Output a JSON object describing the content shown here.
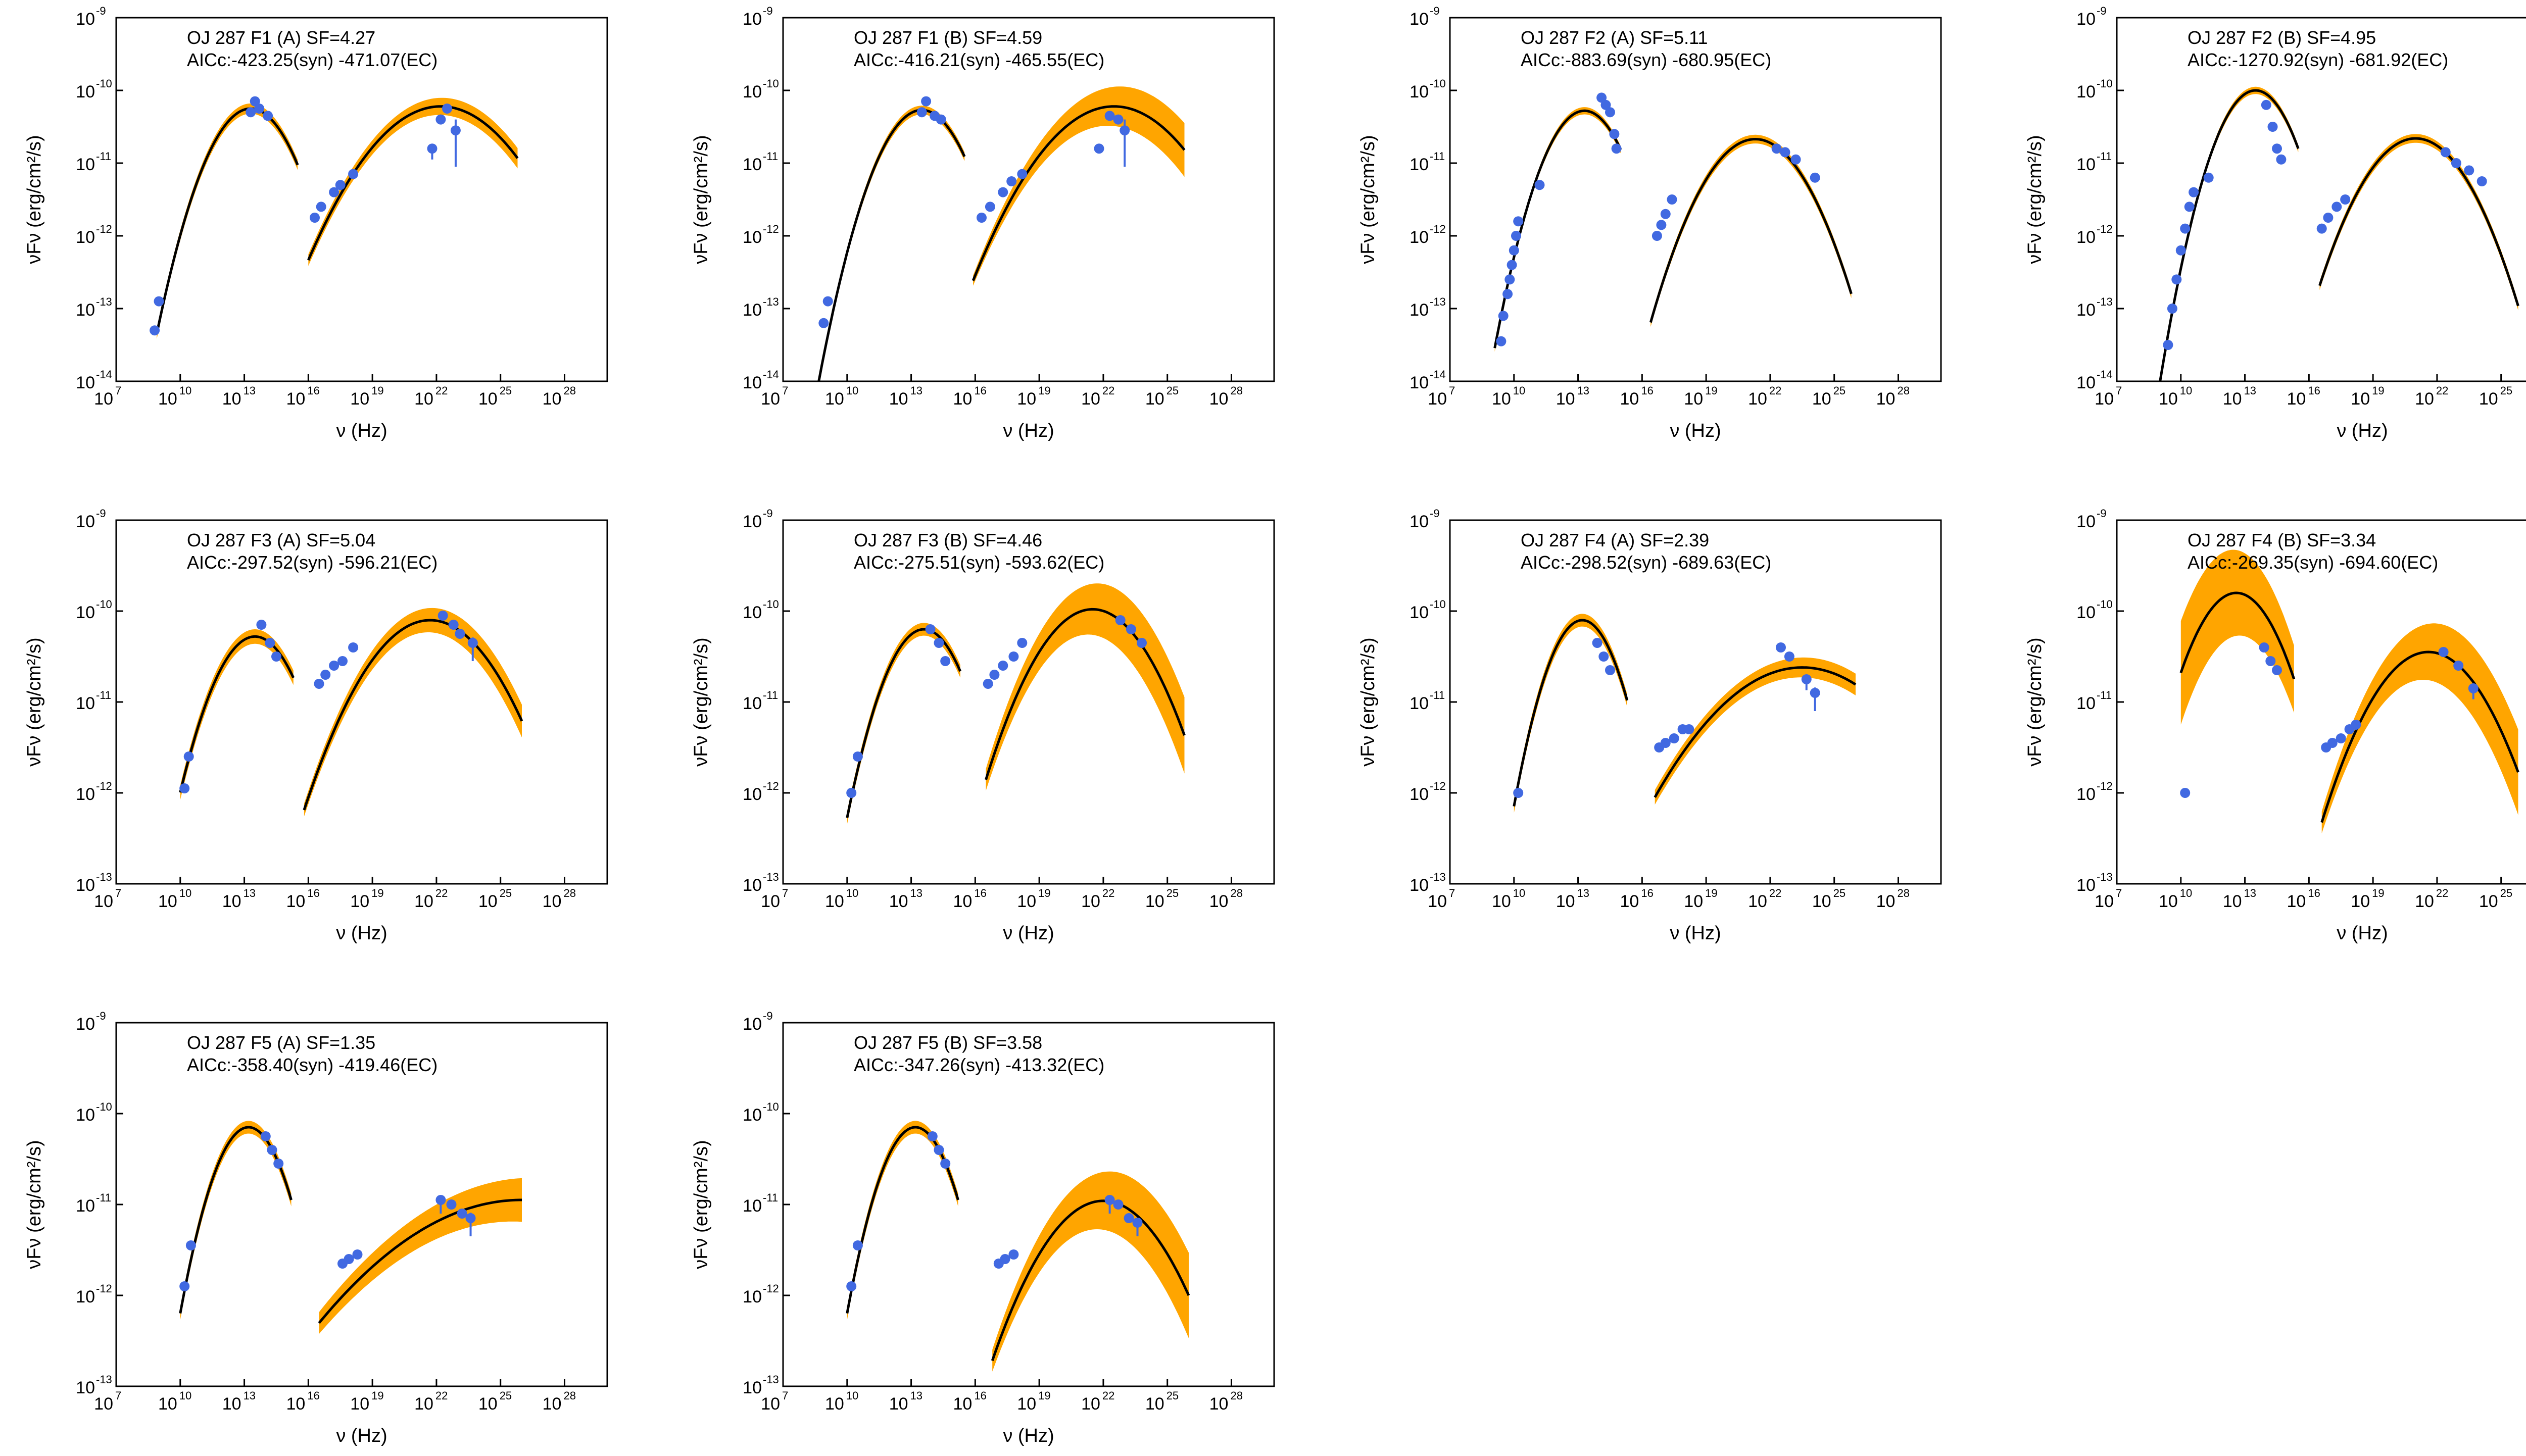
{
  "figure": {
    "colors": {
      "band": "#FFA500",
      "model": "#000000",
      "points": "#4169E1",
      "upper_limit": "#AFC4F0",
      "axes": "#000000"
    },
    "x_axis_label": "ν (Hz)",
    "y_axis_label": "νFν (erg/cm²/s)",
    "x_tick_base": "10",
    "x_tick_exponents": [
      "7",
      "10",
      "13",
      "16",
      "19",
      "22",
      "25",
      "28"
    ],
    "y_tick_base": "10"
  },
  "chart_data": [
    {
      "type": "scatter",
      "title": "OJ 287 F1 (A) SF=4.27",
      "subtitle": "AICc:-423.25(syn)  -471.07(EC)",
      "xlabel": "ν (Hz)",
      "ylabel": "νFν (erg/cm²/s)",
      "xlim": [
        7,
        30
      ],
      "ylim": [
        -14,
        -9
      ],
      "yticks": [
        "-14",
        "-13",
        "-12",
        "-11",
        "-10",
        "-9"
      ],
      "syn": {
        "A": -10.25,
        "peak": 13.3,
        "c": 0.16,
        "x0": 8.9,
        "x1": 15.5,
        "band": [
          [
            0.05,
            0.05
          ]
        ]
      },
      "ec": {
        "A": -10.22,
        "peak": 22.2,
        "c": 0.055,
        "x0": 16.0,
        "x1": 25.8,
        "band": [
          [
            0.06,
            0.12
          ]
        ]
      },
      "points": [
        [
          8.8,
          -13.3
        ],
        [
          9.0,
          -12.9
        ],
        [
          13.3,
          -10.3
        ],
        [
          13.5,
          -10.15
        ],
        [
          13.7,
          -10.25
        ],
        [
          14.1,
          -10.35
        ],
        [
          16.3,
          -11.75
        ],
        [
          16.6,
          -11.6
        ],
        [
          17.2,
          -11.4
        ],
        [
          17.5,
          -11.3
        ],
        [
          18.1,
          -11.15
        ],
        [
          21.8,
          -10.8
        ],
        [
          22.2,
          -10.4
        ],
        [
          22.5,
          -10.25
        ],
        [
          22.9,
          -10.55
        ]
      ],
      "errors": [
        [
          22.9,
          -10.55,
          0.5
        ],
        [
          21.8,
          -10.8,
          0.15
        ]
      ]
    },
    {
      "type": "scatter",
      "title": "OJ 287 F1 (B) SF=4.59",
      "subtitle": "AICc:-416.21(syn)  -465.55(EC)",
      "xlabel": "ν (Hz)",
      "ylabel": "νFν (erg/cm²/s)",
      "xlim": [
        7,
        30
      ],
      "ylim": [
        -14,
        -9
      ],
      "yticks": [
        "-14",
        "-13",
        "-12",
        "-11",
        "-10",
        "-9"
      ],
      "syn": {
        "A": -10.27,
        "peak": 13.5,
        "c": 0.16,
        "x0": 8.5,
        "x1": 15.5,
        "band": [
          [
            0.04,
            0.04
          ]
        ]
      },
      "ec": {
        "A": -10.22,
        "peak": 22.5,
        "c": 0.055,
        "x0": 15.9,
        "x1": 25.8,
        "band": [
          [
            0.05,
            0.35
          ]
        ]
      },
      "points": [
        [
          8.9,
          -13.2
        ],
        [
          9.1,
          -12.9
        ],
        [
          13.5,
          -10.3
        ],
        [
          13.7,
          -10.15
        ],
        [
          14.1,
          -10.35
        ],
        [
          14.4,
          -10.4
        ],
        [
          16.3,
          -11.75
        ],
        [
          16.7,
          -11.6
        ],
        [
          17.3,
          -11.4
        ],
        [
          17.7,
          -11.25
        ],
        [
          18.2,
          -11.15
        ],
        [
          21.8,
          -10.8
        ],
        [
          22.3,
          -10.35
        ],
        [
          22.7,
          -10.4
        ],
        [
          23.0,
          -10.55
        ]
      ],
      "errors": [
        [
          23.0,
          -10.55,
          0.5
        ]
      ]
    },
    {
      "type": "scatter",
      "title": "OJ 287 F2 (A) SF=5.11",
      "subtitle": "AICc:-883.69(syn)  -680.95(EC)",
      "xlabel": "ν (Hz)",
      "ylabel": "νFν (erg/cm²/s)",
      "xlim": [
        7,
        30
      ],
      "ylim": [
        -14,
        -9
      ],
      "yticks": [
        "-14",
        "-13",
        "-12",
        "-11",
        "-10",
        "-9"
      ],
      "syn": {
        "A": -10.28,
        "peak": 13.3,
        "c": 0.185,
        "x0": 9.1,
        "x1": 15.0,
        "band": [
          [
            0.03,
            0.03
          ]
        ]
      },
      "ec": {
        "A": -10.67,
        "peak": 21.3,
        "c": 0.105,
        "x0": 16.4,
        "x1": 25.8,
        "band": [
          [
            0.04,
            0.04
          ]
        ]
      },
      "points": [
        [
          9.4,
          -13.45
        ],
        [
          9.5,
          -13.1
        ],
        [
          9.7,
          -12.8
        ],
        [
          9.8,
          -12.6
        ],
        [
          9.9,
          -12.4
        ],
        [
          10.0,
          -12.2
        ],
        [
          10.1,
          -12.0
        ],
        [
          10.2,
          -11.8
        ],
        [
          11.2,
          -11.3
        ],
        [
          14.1,
          -10.1
        ],
        [
          14.3,
          -10.2
        ],
        [
          14.5,
          -10.3
        ],
        [
          14.7,
          -10.6
        ],
        [
          14.8,
          -10.8
        ],
        [
          16.7,
          -12.0
        ],
        [
          16.9,
          -11.85
        ],
        [
          17.1,
          -11.7
        ],
        [
          17.4,
          -11.5
        ],
        [
          22.3,
          -10.8
        ],
        [
          22.7,
          -10.85
        ],
        [
          23.2,
          -10.95
        ],
        [
          24.1,
          -11.2
        ]
      ],
      "errors": []
    },
    {
      "type": "scatter",
      "title": "OJ 287 F2 (B) SF=4.95",
      "subtitle": "AICc:-1270.92(syn)  -681.92(EC)",
      "xlabel": "ν (Hz)",
      "ylabel": "νFν (erg/cm²/s)",
      "xlim": [
        7,
        30
      ],
      "ylim": [
        -14,
        -9
      ],
      "yticks": [
        "-14",
        "-13",
        "-12",
        "-11",
        "-10",
        "-9"
      ],
      "syn": {
        "A": -10.0,
        "peak": 13.5,
        "c": 0.2,
        "x0": 8.5,
        "x1": 15.5,
        "band": [
          [
            0.03,
            0.03
          ]
        ]
      },
      "ec": {
        "A": -10.66,
        "peak": 21.0,
        "c": 0.1,
        "x0": 16.5,
        "x1": 25.8,
        "band": [
          [
            0.04,
            0.04
          ]
        ]
      },
      "points": [
        [
          9.4,
          -13.5
        ],
        [
          9.6,
          -13.0
        ],
        [
          9.8,
          -12.6
        ],
        [
          10.0,
          -12.2
        ],
        [
          10.2,
          -11.9
        ],
        [
          10.4,
          -11.6
        ],
        [
          10.6,
          -11.4
        ],
        [
          11.3,
          -11.2
        ],
        [
          14.0,
          -10.2
        ],
        [
          14.3,
          -10.5
        ],
        [
          14.5,
          -10.8
        ],
        [
          14.7,
          -10.95
        ],
        [
          16.6,
          -11.9
        ],
        [
          16.9,
          -11.75
        ],
        [
          17.3,
          -11.6
        ],
        [
          17.7,
          -11.5
        ],
        [
          22.4,
          -10.85
        ],
        [
          22.9,
          -11.0
        ],
        [
          23.5,
          -11.1
        ],
        [
          24.1,
          -11.25
        ]
      ],
      "errors": []
    },
    {
      "type": "scatter",
      "title": "OJ 287 F3 (A) SF=5.04",
      "subtitle": "AICc:-297.52(syn)  -596.21(EC)",
      "xlabel": "ν (Hz)",
      "ylabel": "νFν (erg/cm²/s)",
      "xlim": [
        7,
        30
      ],
      "ylim": [
        -13,
        -9
      ],
      "yticks": [
        "-13",
        "-12",
        "-11",
        "-10",
        "-9"
      ],
      "syn": {
        "A": -10.28,
        "peak": 13.5,
        "c": 0.14,
        "x0": 10.0,
        "x1": 15.3,
        "band": [
          [
            0.06,
            0.06
          ]
        ]
      },
      "ec": {
        "A": -10.1,
        "peak": 21.7,
        "c": 0.06,
        "x0": 15.8,
        "x1": 26.0,
        "band": [
          [
            0.05,
            0.16
          ]
        ]
      },
      "points": [
        [
          10.2,
          -11.95
        ],
        [
          10.4,
          -11.6
        ],
        [
          13.8,
          -10.15
        ],
        [
          14.2,
          -10.35
        ],
        [
          14.5,
          -10.5
        ],
        [
          16.5,
          -10.8
        ],
        [
          16.8,
          -10.7
        ],
        [
          17.2,
          -10.6
        ],
        [
          17.6,
          -10.55
        ],
        [
          18.1,
          -10.4
        ],
        [
          22.3,
          -10.05
        ],
        [
          22.8,
          -10.15
        ],
        [
          23.1,
          -10.25
        ],
        [
          23.7,
          -10.35
        ]
      ],
      "errors": [
        [
          23.7,
          -10.35,
          0.2
        ]
      ]
    },
    {
      "type": "scatter",
      "title": "OJ 287 F3 (B) SF=4.46",
      "subtitle": "AICc:-275.51(syn)  -593.62(EC)",
      "xlabel": "ν (Hz)",
      "ylabel": "νFν (erg/cm²/s)",
      "xlim": [
        7,
        30
      ],
      "ylim": [
        -13,
        -9
      ],
      "yticks": [
        "-13",
        "-12",
        "-11",
        "-10",
        "-9"
      ],
      "syn": {
        "A": -10.2,
        "peak": 13.6,
        "c": 0.16,
        "x0": 10.0,
        "x1": 15.3,
        "band": [
          [
            0.05,
            0.05
          ]
        ]
      },
      "ec": {
        "A": -9.98,
        "peak": 21.5,
        "c": 0.075,
        "x0": 16.5,
        "x1": 25.8,
        "band": [
          [
            0.1,
            0.4
          ]
        ]
      },
      "points": [
        [
          10.2,
          -12.0
        ],
        [
          10.5,
          -11.6
        ],
        [
          13.9,
          -10.2
        ],
        [
          14.3,
          -10.35
        ],
        [
          14.6,
          -10.55
        ],
        [
          16.6,
          -10.8
        ],
        [
          16.9,
          -10.7
        ],
        [
          17.3,
          -10.6
        ],
        [
          17.8,
          -10.5
        ],
        [
          18.2,
          -10.35
        ],
        [
          22.8,
          -10.1
        ],
        [
          23.3,
          -10.2
        ],
        [
          23.8,
          -10.35
        ]
      ],
      "errors": []
    },
    {
      "type": "scatter",
      "title": "OJ 287 F4 (A) SF=2.39",
      "subtitle": "AICc:-298.52(syn)  -689.63(EC)",
      "xlabel": "ν (Hz)",
      "ylabel": "νFν (erg/cm²/s)",
      "xlim": [
        7,
        30
      ],
      "ylim": [
        -13,
        -9
      ],
      "yticks": [
        "-13",
        "-12",
        "-11",
        "-10",
        "-9"
      ],
      "syn": {
        "A": -10.1,
        "peak": 13.2,
        "c": 0.2,
        "x0": 10.0,
        "x1": 15.3,
        "band": [
          [
            0.05,
            0.05
          ]
        ]
      },
      "ec": {
        "A": -10.62,
        "peak": 23.5,
        "c": 0.03,
        "x0": 16.6,
        "x1": 26.0,
        "band": [
          [
            0.06,
            0.1
          ]
        ]
      },
      "points": [
        [
          10.2,
          -12.0
        ],
        [
          13.9,
          -10.35
        ],
        [
          14.2,
          -10.5
        ],
        [
          14.5,
          -10.65
        ],
        [
          16.8,
          -11.5
        ],
        [
          17.1,
          -11.45
        ],
        [
          17.5,
          -11.4
        ],
        [
          17.9,
          -11.3
        ],
        [
          18.2,
          -11.3
        ],
        [
          22.5,
          -10.4
        ],
        [
          22.9,
          -10.5
        ],
        [
          23.7,
          -10.75
        ],
        [
          24.1,
          -10.9
        ]
      ],
      "errors": [
        [
          24.1,
          -10.9,
          0.2
        ],
        [
          23.7,
          -10.75,
          0.12
        ]
      ]
    },
    {
      "type": "scatter",
      "title": "OJ 287 F4 (B) SF=3.34",
      "subtitle": "AICc:-269.35(syn)  -694.60(EC)",
      "xlabel": "ν (Hz)",
      "ylabel": "νFν (erg/cm²/s)",
      "xlim": [
        7,
        30
      ],
      "ylim": [
        -13,
        -9
      ],
      "yticks": [
        "-13",
        "-12",
        "-11",
        "-10",
        "-9"
      ],
      "syn": {
        "A": -9.8,
        "peak": 12.6,
        "c": 0.13,
        "x0": 10.0,
        "x1": 15.3,
        "band": [
          [
            0.55,
            0.35
          ]
        ]
      },
      "ec": {
        "A": -10.45,
        "peak": 21.6,
        "c": 0.075,
        "x0": 16.6,
        "x1": 25.8,
        "band": [
          [
            0.1,
            0.45
          ]
        ]
      },
      "points": [
        [
          10.2,
          -12.0
        ],
        [
          13.9,
          -10.4
        ],
        [
          14.2,
          -10.55
        ],
        [
          14.5,
          -10.65
        ],
        [
          16.8,
          -11.5
        ],
        [
          17.1,
          -11.45
        ],
        [
          17.5,
          -11.4
        ],
        [
          17.9,
          -11.3
        ],
        [
          18.2,
          -11.25
        ],
        [
          22.3,
          -10.45
        ],
        [
          23.0,
          -10.6
        ],
        [
          23.7,
          -10.85
        ]
      ],
      "errors": [
        [
          23.7,
          -10.85,
          0.12
        ]
      ]
    },
    {
      "type": "scatter",
      "title": "OJ 287 F5 (A) SF=1.35",
      "subtitle": "AICc:-358.40(syn)  -419.46(EC)",
      "xlabel": "ν (Hz)",
      "ylabel": "νFν (erg/cm²/s)",
      "xlim": [
        7,
        30
      ],
      "ylim": [
        -13,
        -9
      ],
      "yticks": [
        "-13",
        "-12",
        "-11",
        "-10",
        "-9"
      ],
      "syn": {
        "A": -10.15,
        "peak": 13.2,
        "c": 0.2,
        "x0": 10.0,
        "x1": 15.2,
        "band": [
          [
            0.05,
            0.05
          ]
        ]
      },
      "ec": {
        "A": -10.95,
        "peak": 26.0,
        "c": 0.015,
        "x0": 16.5,
        "x1": 26.0,
        "band": [
          [
            0.1,
            0.22
          ]
        ]
      },
      "points": [
        [
          10.2,
          -11.9
        ],
        [
          10.5,
          -11.45
        ],
        [
          14.0,
          -10.25
        ],
        [
          14.3,
          -10.4
        ],
        [
          14.6,
          -10.55
        ],
        [
          17.6,
          -11.65
        ],
        [
          17.9,
          -11.6
        ],
        [
          18.3,
          -11.55
        ],
        [
          22.2,
          -10.95
        ],
        [
          22.7,
          -11.0
        ],
        [
          23.2,
          -11.1
        ],
        [
          23.6,
          -11.15
        ]
      ],
      "errors": [
        [
          23.6,
          -11.15,
          0.2
        ],
        [
          22.2,
          -10.95,
          0.15
        ]
      ]
    },
    {
      "type": "scatter",
      "title": "OJ 287 F5 (B) SF=3.58",
      "subtitle": "AICc:-347.26(syn)  -413.32(EC)",
      "xlabel": "ν (Hz)",
      "ylabel": "νFν (erg/cm²/s)",
      "xlim": [
        7,
        30
      ],
      "ylim": [
        -13,
        -9
      ],
      "yticks": [
        "-13",
        "-12",
        "-11",
        "-10",
        "-9"
      ],
      "syn": {
        "A": -10.15,
        "peak": 13.2,
        "c": 0.2,
        "x0": 10.0,
        "x1": 15.2,
        "band": [
          [
            0.05,
            0.05
          ]
        ]
      },
      "ec": {
        "A": -10.96,
        "peak": 22.0,
        "c": 0.065,
        "x0": 16.8,
        "x1": 26.0,
        "band": [
          [
            0.1,
            0.45
          ]
        ]
      },
      "points": [
        [
          10.2,
          -11.9
        ],
        [
          10.5,
          -11.45
        ],
        [
          14.0,
          -10.25
        ],
        [
          14.3,
          -10.4
        ],
        [
          14.6,
          -10.55
        ],
        [
          17.1,
          -11.65
        ],
        [
          17.4,
          -11.6
        ],
        [
          17.8,
          -11.55
        ],
        [
          22.3,
          -10.95
        ],
        [
          22.7,
          -11.0
        ],
        [
          23.2,
          -11.15
        ],
        [
          23.6,
          -11.2
        ]
      ],
      "errors": [
        [
          22.3,
          -10.95,
          0.15
        ],
        [
          23.6,
          -11.2,
          0.15
        ]
      ]
    }
  ]
}
